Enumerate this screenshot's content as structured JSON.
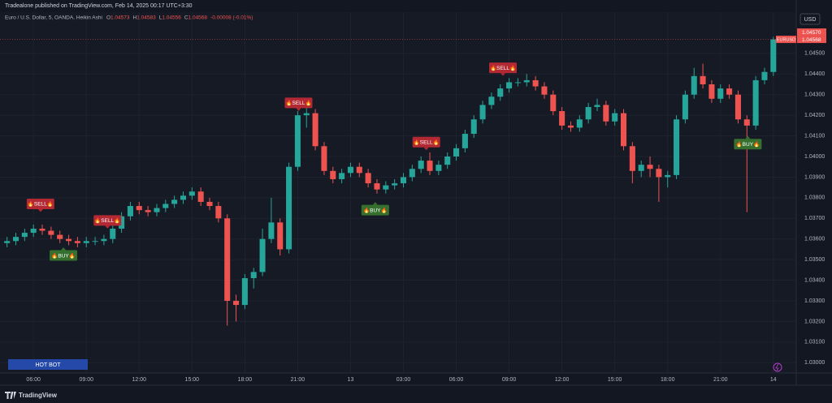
{
  "header": {
    "text": "Tradealone published on TradingView.com, Feb 14, 2025 00:17 UTC+3:30"
  },
  "legend": {
    "instrument": "Euro / U.S. Dollar, 5, OANDA, Heikin Ashi",
    "ohlc": [
      {
        "key": "O",
        "value": "1.04573"
      },
      {
        "key": "H",
        "value": "1.04583"
      },
      {
        "key": "L",
        "value": "1.04556"
      },
      {
        "key": "C",
        "value": "1.04568"
      }
    ],
    "change": "-0.00008 (-0.01%)"
  },
  "currency": "USD",
  "button": "HOT BOT",
  "footer": "TradingView",
  "chart_data": {
    "type": "candlestick",
    "symbol": "EURUSD",
    "up_color": "#26a69a",
    "down_color": "#ef5350",
    "grid": true,
    "x": [
      4.5,
      5,
      5.5,
      6,
      6.5,
      7,
      7.5,
      8,
      8.5,
      9,
      9.5,
      10,
      10.5,
      11,
      11.5,
      12,
      12.5,
      13,
      13.5,
      14,
      14.5,
      15,
      15.5,
      16,
      16.5,
      17,
      17.5,
      18,
      18.5,
      19,
      19.5,
      20,
      20.5,
      21,
      21.5,
      22,
      22.5,
      23,
      23.5,
      24,
      24.5,
      25,
      25.5,
      26,
      26.5,
      27,
      27.5,
      28,
      28.5,
      29,
      29.5,
      30,
      30.5,
      31,
      31.5,
      32,
      32.5,
      33,
      33.5,
      34,
      34.5,
      35,
      35.5,
      36,
      36.5,
      37,
      37.5,
      38,
      38.5,
      39,
      39.5,
      40,
      40.5,
      41,
      41.5,
      42,
      42.5,
      43,
      43.5,
      44,
      44.5,
      45,
      45.5,
      46,
      46.5,
      47,
      47.5,
      48
    ],
    "open": [
      1.0358,
      1.0359,
      1.0361,
      1.0363,
      1.0365,
      1.0364,
      1.0362,
      1.036,
      1.0359,
      1.0358,
      1.0359,
      1.0359,
      1.036,
      1.0365,
      1.0371,
      1.0376,
      1.0374,
      1.0373,
      1.0375,
      1.0377,
      1.0379,
      1.0381,
      1.0383,
      1.0378,
      1.0376,
      1.037,
      1.033,
      1.0328,
      1.0341,
      1.0344,
      1.036,
      1.0368,
      1.0355,
      1.0395,
      1.042,
      1.0421,
      1.0405,
      1.0393,
      1.0389,
      1.0392,
      1.0395,
      1.0392,
      1.0387,
      1.0384,
      1.0386,
      1.0387,
      1.039,
      1.0394,
      1.0398,
      1.0393,
      1.0396,
      1.04,
      1.0404,
      1.0411,
      1.0418,
      1.0425,
      1.0429,
      1.0433,
      1.0436,
      1.0436,
      1.0437,
      1.0434,
      1.043,
      1.0422,
      1.0415,
      1.0414,
      1.0418,
      1.0424,
      1.0425,
      1.0417,
      1.0421,
      1.0405,
      1.0393,
      1.0396,
      1.0394,
      1.039,
      1.0391,
      1.0418,
      1.043,
      1.0439,
      1.0435,
      1.0428,
      1.0433,
      1.043,
      1.0418,
      1.0415,
      1.0437,
      1.0441
    ],
    "high": [
      1.0361,
      1.0363,
      1.0365,
      1.0367,
      1.0367,
      1.0366,
      1.0364,
      1.0362,
      1.0361,
      1.0361,
      1.0361,
      1.0362,
      1.0367,
      1.0373,
      1.0378,
      1.0378,
      1.0376,
      1.0377,
      1.0379,
      1.0381,
      1.0383,
      1.0385,
      1.0385,
      1.038,
      1.0378,
      1.0372,
      1.0333,
      1.0343,
      1.0346,
      1.0365,
      1.038,
      1.037,
      1.0397,
      1.0422,
      1.0427,
      1.0423,
      1.0407,
      1.0395,
      1.0394,
      1.0397,
      1.0397,
      1.0394,
      1.0389,
      1.0388,
      1.0389,
      1.0392,
      1.0396,
      1.04,
      1.0402,
      1.0398,
      1.0402,
      1.0406,
      1.0413,
      1.042,
      1.0427,
      1.0431,
      1.0435,
      1.0438,
      1.0438,
      1.044,
      1.0439,
      1.0436,
      1.0432,
      1.0424,
      1.0417,
      1.042,
      1.0426,
      1.0428,
      1.0427,
      1.0423,
      1.0423,
      1.0407,
      1.0398,
      1.04,
      1.0396,
      1.0393,
      1.042,
      1.0432,
      1.0443,
      1.0445,
      1.0437,
      1.0435,
      1.0435,
      1.0432,
      1.042,
      1.0439,
      1.0443,
      1.0458
    ],
    "low": [
      1.0356,
      1.0357,
      1.0359,
      1.0361,
      1.0362,
      1.036,
      1.0358,
      1.0357,
      1.0356,
      1.0356,
      1.0357,
      1.0357,
      1.0358,
      1.0363,
      1.0369,
      1.0372,
      1.0371,
      1.0371,
      1.0373,
      1.0375,
      1.0377,
      1.0379,
      1.0376,
      1.0374,
      1.0368,
      1.0318,
      1.032,
      1.0326,
      1.0336,
      1.0342,
      1.0358,
      1.0352,
      1.0353,
      1.0393,
      1.0414,
      1.0403,
      1.0391,
      1.0387,
      1.0387,
      1.039,
      1.039,
      1.0385,
      1.0382,
      1.0382,
      1.0384,
      1.0385,
      1.0388,
      1.0392,
      1.0391,
      1.0391,
      1.0394,
      1.0398,
      1.0402,
      1.0409,
      1.0416,
      1.0423,
      1.0427,
      1.0431,
      1.0434,
      1.0434,
      1.0432,
      1.0428,
      1.042,
      1.0413,
      1.0412,
      1.0412,
      1.0416,
      1.0422,
      1.0415,
      1.0415,
      1.0403,
      1.0387,
      1.039,
      1.039,
      1.0378,
      1.0385,
      1.0389,
      1.0416,
      1.0428,
      1.0433,
      1.0426,
      1.0426,
      1.0428,
      1.0416,
      1.0373,
      1.0413,
      1.0435,
      1.0439
    ],
    "close": [
      1.0359,
      1.0361,
      1.0363,
      1.0365,
      1.0364,
      1.0362,
      1.036,
      1.0359,
      1.0358,
      1.0359,
      1.0359,
      1.036,
      1.0365,
      1.0371,
      1.0376,
      1.0374,
      1.0373,
      1.0375,
      1.0377,
      1.0379,
      1.0381,
      1.0383,
      1.0378,
      1.0376,
      1.037,
      1.033,
      1.0328,
      1.0341,
      1.0344,
      1.036,
      1.0368,
      1.0355,
      1.0395,
      1.042,
      1.0421,
      1.0405,
      1.0393,
      1.0389,
      1.0392,
      1.0395,
      1.0392,
      1.0387,
      1.0384,
      1.0386,
      1.0387,
      1.039,
      1.0394,
      1.0398,
      1.0393,
      1.0396,
      1.04,
      1.0404,
      1.0411,
      1.0418,
      1.0425,
      1.0429,
      1.0433,
      1.0436,
      1.0436,
      1.0437,
      1.0434,
      1.043,
      1.0422,
      1.0415,
      1.0414,
      1.0418,
      1.0424,
      1.0425,
      1.0417,
      1.0421,
      1.0405,
      1.0393,
      1.0396,
      1.0394,
      1.039,
      1.0391,
      1.0418,
      1.043,
      1.0439,
      1.0435,
      1.0428,
      1.0433,
      1.043,
      1.0418,
      1.0415,
      1.0437,
      1.0441,
      1.04568
    ],
    "xlim": [
      4.1,
      49.3
    ],
    "ylim": [
      1.0295,
      1.047
    ],
    "xticks": [
      {
        "value": 6,
        "label": "06:00"
      },
      {
        "value": 9,
        "label": "09:00"
      },
      {
        "value": 12,
        "label": "12:00"
      },
      {
        "value": 15,
        "label": "15:00"
      },
      {
        "value": 18,
        "label": "18:00"
      },
      {
        "value": 21,
        "label": "21:00"
      },
      {
        "value": 24,
        "label": "13"
      },
      {
        "value": 27,
        "label": "03:00"
      },
      {
        "value": 30,
        "label": "06:00"
      },
      {
        "value": 33,
        "label": "09:00"
      },
      {
        "value": 36,
        "label": "12:00"
      },
      {
        "value": 39,
        "label": "15:00"
      },
      {
        "value": 42,
        "label": "18:00"
      },
      {
        "value": 45,
        "label": "21:00"
      },
      {
        "value": 48,
        "label": "14"
      }
    ],
    "yticks": [
      {
        "value": 1.03,
        "label": "1.03000"
      },
      {
        "value": 1.031,
        "label": "1.03100"
      },
      {
        "value": 1.032,
        "label": "1.03200"
      },
      {
        "value": 1.033,
        "label": "1.03300"
      },
      {
        "value": 1.034,
        "label": "1.03400"
      },
      {
        "value": 1.035,
        "label": "1.03500"
      },
      {
        "value": 1.036,
        "label": "1.03600"
      },
      {
        "value": 1.037,
        "label": "1.03700"
      },
      {
        "value": 1.038,
        "label": "1.03800"
      },
      {
        "value": 1.039,
        "label": "1.03900"
      },
      {
        "value": 1.04,
        "label": "1.04000"
      },
      {
        "value": 1.041,
        "label": "1.04100"
      },
      {
        "value": 1.042,
        "label": "1.04200"
      },
      {
        "value": 1.043,
        "label": "1.04300"
      },
      {
        "value": 1.044,
        "label": "1.04400"
      },
      {
        "value": 1.045,
        "label": "1.04500"
      }
    ],
    "price_tags": [
      {
        "value": 1.0457,
        "label": "1.04570"
      },
      1.04568
    ],
    "signals": [
      {
        "text": "🔥SELL🔥",
        "kind": "sell",
        "x": 6.4,
        "y": 1.0377
      },
      {
        "text": "🔥BUY🔥",
        "kind": "buy",
        "x": 7.7,
        "y": 1.0352
      },
      {
        "text": "🔥SELL🔥",
        "kind": "sell",
        "x": 10.2,
        "y": 1.0369
      },
      {
        "text": "🔥SELL🔥",
        "kind": "sell",
        "x": 21.05,
        "y": 1.0426
      },
      {
        "text": "🔥BUY🔥",
        "kind": "buy",
        "x": 25.4,
        "y": 1.0374
      },
      {
        "text": "🔥SELL🔥",
        "kind": "sell",
        "x": 28.3,
        "y": 1.0407
      },
      {
        "text": "🔥SELL🔥",
        "kind": "sell",
        "x": 32.65,
        "y": 1.0443
      },
      {
        "text": "🔥BUY🔥",
        "kind": "buy",
        "x": 46.55,
        "y": 1.0406
      }
    ]
  }
}
